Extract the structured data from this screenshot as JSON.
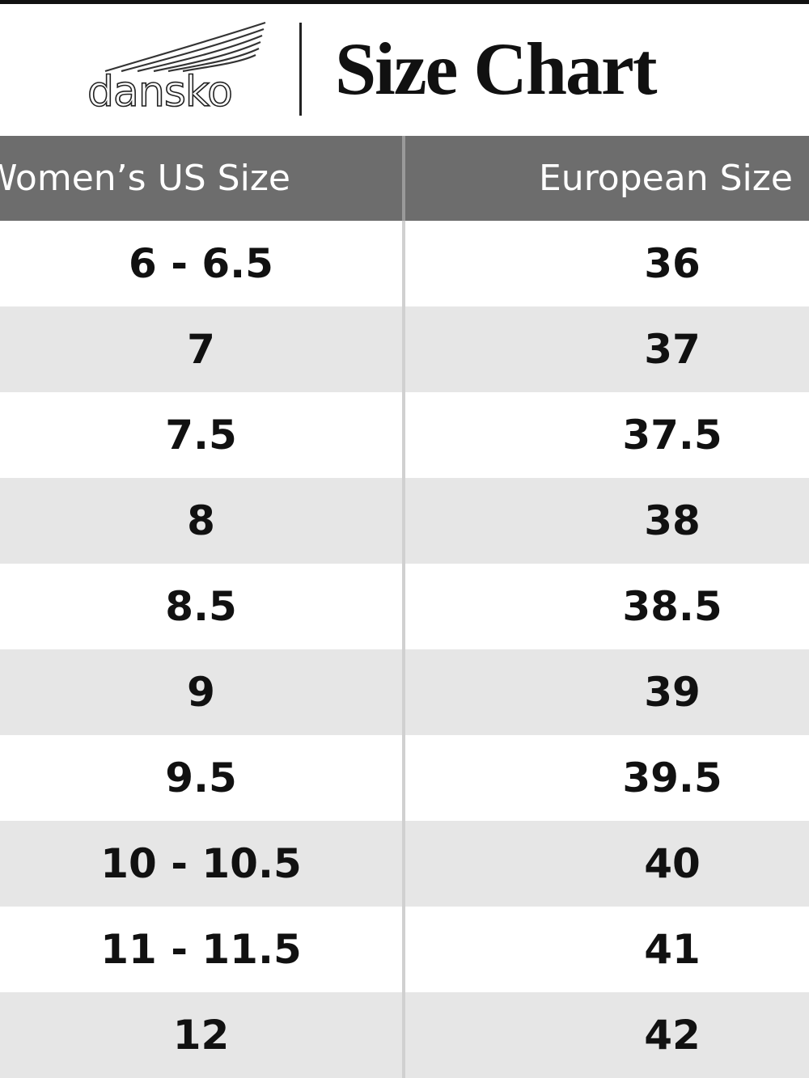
{
  "header": {
    "logo": "dansko",
    "title": "Size Chart"
  },
  "table": {
    "columns": [
      "Women’s US Size",
      "European Size"
    ],
    "rows": [
      [
        "6 - 6.5",
        "36"
      ],
      [
        "7",
        "37"
      ],
      [
        "7.5",
        "37.5"
      ],
      [
        "8",
        "38"
      ],
      [
        "8.5",
        "38.5"
      ],
      [
        "9",
        "39"
      ],
      [
        "9.5",
        "39.5"
      ],
      [
        "10 - 10.5",
        "40"
      ],
      [
        "11 - 11.5",
        "41"
      ],
      [
        "12",
        "42"
      ]
    ]
  }
}
